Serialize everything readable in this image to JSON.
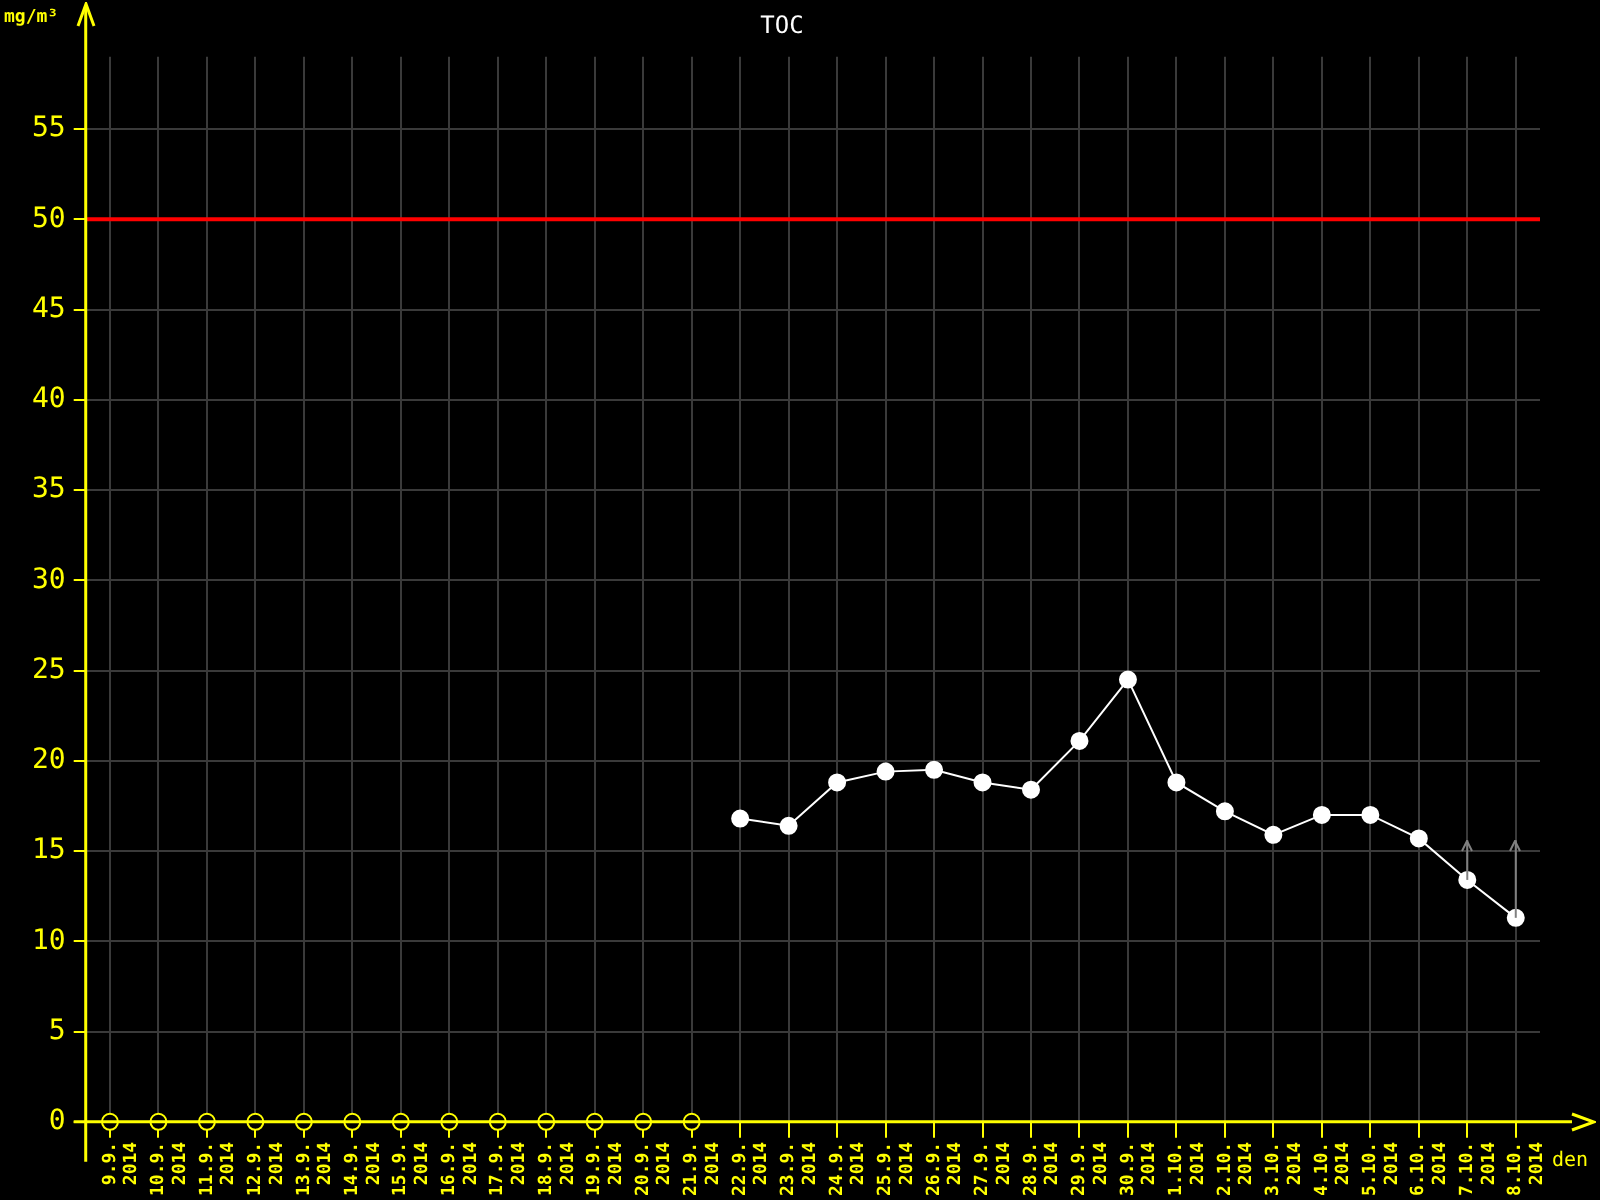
{
  "chart_data": {
    "type": "line",
    "title": "TOC",
    "xlabel": "den",
    "ylabel": "mg/m³",
    "categories": [
      "9.9.\n2014",
      "10.9.\n2014",
      "11.9.\n2014",
      "12.9.\n2014",
      "13.9.\n2014",
      "14.9.\n2014",
      "15.9.\n2014",
      "16.9.\n2014",
      "17.9.\n2014",
      "18.9.\n2014",
      "19.9.\n2014",
      "20.9.\n2014",
      "21.9.\n2014",
      "22.9.\n2014",
      "23.9.\n2014",
      "24.9.\n2014",
      "25.9.\n2014",
      "26.9.\n2014",
      "27.9.\n2014",
      "28.9.\n2014",
      "29.9.\n2014",
      "30.9.\n2014",
      "1.10.\n2014",
      "2.10.\n2014",
      "3.10.\n2014",
      "4.10.\n2014",
      "5.10.\n2014",
      "6.10.\n2014",
      "7.10.\n2014",
      "8.10.\n2014"
    ],
    "series": [
      {
        "type": "scatter",
        "color": "#ffff00",
        "values": [
          0,
          0,
          0,
          0,
          0,
          0,
          0,
          0,
          0,
          0,
          0,
          0,
          0,
          null,
          null,
          null,
          null,
          null,
          null,
          null,
          null,
          null,
          null,
          null,
          null,
          null,
          null,
          null,
          null,
          null
        ]
      },
      {
        "color": "#ffffff",
        "values": [
          null,
          null,
          null,
          null,
          null,
          null,
          null,
          null,
          null,
          null,
          null,
          null,
          null,
          16.8,
          16.4,
          18.8,
          19.4,
          19.5,
          18.8,
          18.4,
          21.1,
          24.5,
          18.8,
          17.2,
          15.9,
          17.0,
          17.0,
          15.7,
          13.4,
          11.3
        ],
        "errors": [
          null,
          null,
          null,
          null,
          null,
          null,
          null,
          null,
          null,
          null,
          null,
          null,
          null,
          null,
          null,
          null,
          null,
          null,
          null,
          null,
          null,
          null,
          null,
          null,
          null,
          null,
          null,
          null,
          [
            13.4,
            15.6
          ],
          [
            11.3,
            15.6
          ]
        ]
      }
    ],
    "ylim": [
      0,
      59
    ],
    "yticks": [
      0,
      5,
      10,
      15,
      20,
      25,
      30,
      35,
      40,
      45,
      50,
      55
    ],
    "ref_lines": [
      {
        "axis": "y",
        "value": 50,
        "color": "#ff0000"
      }
    ],
    "grid": true,
    "legend": false,
    "marker": "circle"
  }
}
